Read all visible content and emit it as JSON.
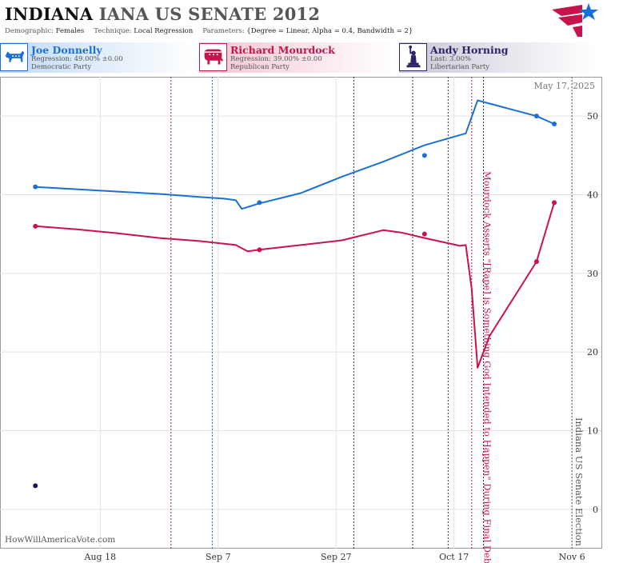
{
  "header": {
    "state": "INDIANA",
    "rest_title": "IANA US SENATE 2012",
    "demographic_key": "Demographic:",
    "demographic": "Females",
    "technique_key": "Technique:",
    "technique": "Local Regression",
    "parameters_key": "Parameters:",
    "parameters": "{Degree = Linear, Alpha = 0.4, Bandwidth = 2}"
  },
  "candidates": [
    {
      "name": "Joe Donnelly",
      "line1": "Regression: 49.00% ±0.00",
      "line2": "Democratic Party",
      "emblem": "donkey-icon",
      "color": "#1a6fd8"
    },
    {
      "name": "Richard Mourdock",
      "line1": "Regression: 39.00% ±0.00",
      "line2": "Republican Party",
      "emblem": "elephant-icon",
      "color": "#c8134a"
    },
    {
      "name": "Andy Horning",
      "line1": "Last: 3.00%",
      "line2": "Libertarian Party",
      "emblem": "statue-of-liberty-icon",
      "color": "#2b2466"
    }
  ],
  "date_stamp": "May 17, 2025",
  "watermark": "HowWillAmericaVote.com",
  "chart_data": {
    "type": "line",
    "x_axis": {
      "type": "date",
      "min": "2012-08-01",
      "max": "2012-11-11",
      "ticks": [
        {
          "date": "2012-08-18",
          "label": "Aug 18"
        },
        {
          "date": "2012-09-07",
          "label": "Sep 7"
        },
        {
          "date": "2012-09-27",
          "label": "Sep 27"
        },
        {
          "date": "2012-10-17",
          "label": "Oct 17"
        },
        {
          "date": "2012-11-06",
          "label": "Nov 6"
        }
      ]
    },
    "y_axis": {
      "min": -5,
      "max": 55,
      "ticks": [
        0,
        10,
        20,
        30,
        40,
        50
      ],
      "position": "right"
    },
    "grid": true,
    "series": [
      {
        "name": "Joe Donnelly",
        "color": "#1a6fd8",
        "line": [
          [
            "2012-08-07",
            41.0
          ],
          [
            "2012-08-14",
            40.7
          ],
          [
            "2012-08-21",
            40.4
          ],
          [
            "2012-08-28",
            40.1
          ],
          [
            "2012-09-04",
            39.7
          ],
          [
            "2012-09-08",
            39.5
          ],
          [
            "2012-09-10",
            39.3
          ],
          [
            "2012-09-11",
            38.2
          ],
          [
            "2012-09-14",
            38.9
          ],
          [
            "2012-09-21",
            40.2
          ],
          [
            "2012-09-28",
            42.3
          ],
          [
            "2012-10-05",
            44.2
          ],
          [
            "2012-10-12",
            46.3
          ],
          [
            "2012-10-19",
            47.8
          ],
          [
            "2012-10-21",
            52.0
          ],
          [
            "2012-10-25",
            51.2
          ],
          [
            "2012-10-31",
            50.0
          ],
          [
            "2012-11-03",
            49.0
          ]
        ],
        "points": [
          [
            "2012-08-07",
            41.0
          ],
          [
            "2012-09-14",
            39.0
          ],
          [
            "2012-10-12",
            45.0
          ],
          [
            "2012-10-31",
            50.0
          ],
          [
            "2012-11-03",
            49.0
          ]
        ]
      },
      {
        "name": "Richard Mourdock",
        "color": "#c8134a",
        "line": [
          [
            "2012-08-07",
            36.0
          ],
          [
            "2012-08-14",
            35.6
          ],
          [
            "2012-08-21",
            35.1
          ],
          [
            "2012-08-28",
            34.5
          ],
          [
            "2012-09-04",
            34.1
          ],
          [
            "2012-09-10",
            33.6
          ],
          [
            "2012-09-12",
            32.8
          ],
          [
            "2012-09-14",
            33.0
          ],
          [
            "2012-09-21",
            33.6
          ],
          [
            "2012-09-28",
            34.2
          ],
          [
            "2012-10-05",
            35.5
          ],
          [
            "2012-10-08",
            35.2
          ],
          [
            "2012-10-12",
            34.5
          ],
          [
            "2012-10-18",
            33.5
          ],
          [
            "2012-10-19",
            33.6
          ],
          [
            "2012-10-20",
            28.0
          ],
          [
            "2012-10-21",
            18.0
          ],
          [
            "2012-10-23",
            22.0
          ],
          [
            "2012-10-31",
            31.5
          ],
          [
            "2012-11-03",
            39.0
          ]
        ],
        "points": [
          [
            "2012-08-07",
            36.0
          ],
          [
            "2012-09-14",
            33.0
          ],
          [
            "2012-10-12",
            35.0
          ],
          [
            "2012-10-31",
            31.5
          ],
          [
            "2012-11-03",
            39.0
          ]
        ]
      },
      {
        "name": "Andy Horning",
        "color": "#1a1450",
        "line": [],
        "points": [
          [
            "2012-08-07",
            3.0
          ]
        ]
      }
    ],
    "event_lines": [
      {
        "date": "2012-08-30",
        "color": "#a02050"
      },
      {
        "date": "2012-09-06",
        "color": "#1a6fd8"
      },
      {
        "date": "2012-09-30",
        "color": "#2b2466"
      },
      {
        "date": "2012-10-10",
        "color": "#2b2466"
      },
      {
        "date": "2012-10-16",
        "color": "#2b2466"
      },
      {
        "date": "2012-10-22",
        "color": "#2b2466"
      },
      {
        "date": "2012-10-20",
        "color": "#c8134a"
      },
      {
        "date": "2012-11-06",
        "color": "#555555"
      }
    ],
    "annotations": [
      {
        "date": "2012-10-22",
        "text": "Mourdock Asserts \"[Rape] is Something God Intended to Happen\" During Final Debate",
        "color": "#c8134a"
      },
      {
        "date": "2012-11-06",
        "text": "Indiana US Senate Election",
        "color": "#555555"
      }
    ]
  }
}
